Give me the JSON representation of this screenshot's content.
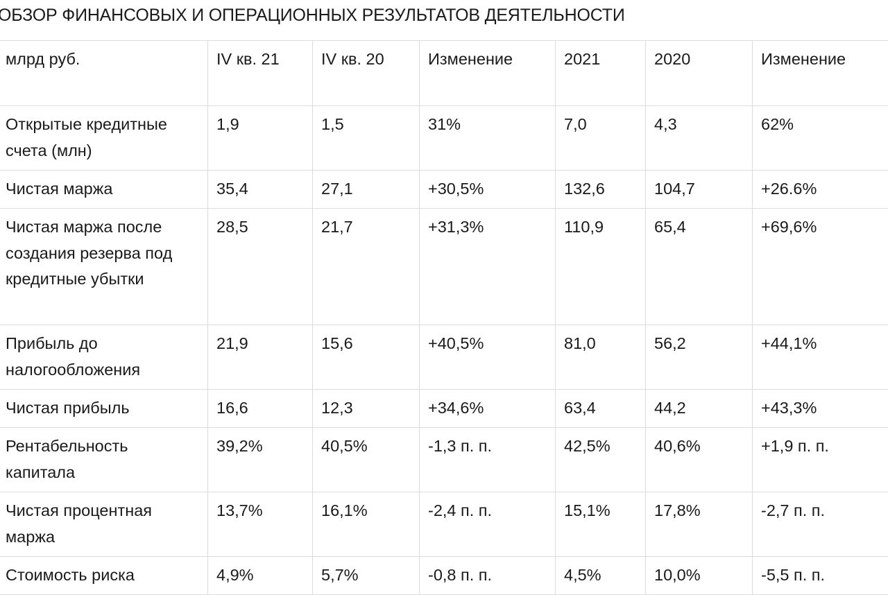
{
  "title": "ОБЗОР ФИНАНСОВЫХ И ОПЕРАЦИОННЫХ РЕЗУЛЬТАТОВ ДЕЯТЕЛЬНОСТИ",
  "table": {
    "headers": [
      "млрд руб.",
      "IV кв. 21",
      "IV кв. 20",
      "Изменение",
      "2021",
      "2020",
      "Изменение"
    ],
    "rows": [
      [
        "Открытые кредитные счета (млн)",
        "1,9",
        "1,5",
        "31%",
        "7,0",
        "4,3",
        "62%"
      ],
      [
        "Чистая маржа",
        "35,4",
        "27,1",
        "+30,5%",
        "132,6",
        "104,7",
        "+26.6%"
      ],
      [
        "Чистая маржа после создания резерва под кредитные убытки",
        "28,5",
        "21,7",
        "+31,3%",
        "110,9",
        "65,4",
        "+69,6%"
      ],
      [
        "Прибыль до налогообложения",
        "21,9",
        "15,6",
        "+40,5%",
        "81,0",
        "56,2",
        "+44,1%"
      ],
      [
        "Чистая прибыль",
        "16,6",
        "12,3",
        "+34,6%",
        "63,4",
        "44,2",
        "+43,3%"
      ],
      [
        "Рентабельность капитала",
        "39,2%",
        "40,5%",
        "-1,3 п. п.",
        "42,5%",
        "40,6%",
        "+1,9 п. п."
      ],
      [
        "Чистая процентная маржа",
        "13,7%",
        "16,1%",
        "-2,4 п. п.",
        "15,1%",
        "17,8%",
        "-2,7 п. п."
      ],
      [
        "Стоимость риска",
        "4,9%",
        "5,7%",
        "-0,8 п. п.",
        "4,5%",
        "10,0%",
        "-5,5 п. п."
      ]
    ]
  }
}
